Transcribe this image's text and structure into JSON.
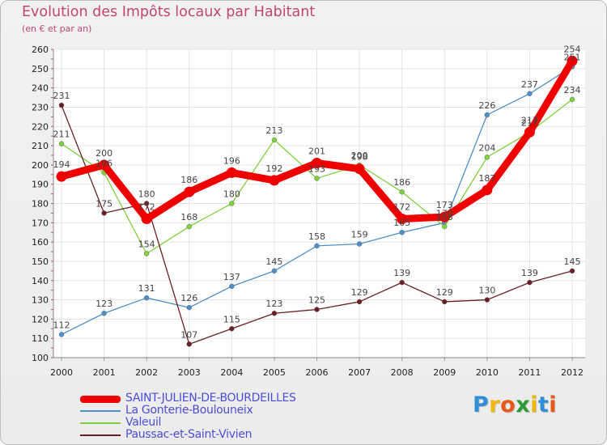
{
  "header": {
    "title": "Evolution des Impôts locaux par Habitant",
    "subtitle": "(en € et par an)"
  },
  "chart_data": {
    "type": "line",
    "title": "Evolution des Impôts locaux par Habitant",
    "subtitle": "(en € et par an)",
    "xlabel": "",
    "ylabel": "",
    "ylim": [
      100,
      260
    ],
    "y_ticks": [
      100,
      110,
      120,
      130,
      140,
      150,
      160,
      170,
      180,
      190,
      200,
      210,
      220,
      230,
      240,
      250,
      260
    ],
    "categories": [
      "2000",
      "2001",
      "2002",
      "2003",
      "2004",
      "2005",
      "2006",
      "2007",
      "2008",
      "2009",
      "2010",
      "2011",
      "2012"
    ],
    "grid": true,
    "legend_position": "bottom-left",
    "series": [
      {
        "name": "La Gonterie-Boulouneix",
        "color": "#4f8fc9",
        "values": [
          112,
          123,
          131,
          126,
          137,
          145,
          158,
          159,
          165,
          170,
          226,
          237,
          251
        ],
        "labels": [
          "112",
          "123",
          "131",
          "126",
          "137",
          "145",
          "158",
          "159",
          "165",
          "170",
          "226",
          "237",
          "251"
        ]
      },
      {
        "name": "Valeuil",
        "color": "#7ed13f",
        "values": [
          211,
          196,
          154,
          168,
          180,
          213,
          193,
          200,
          186,
          168,
          204,
          217,
          234
        ],
        "labels": [
          "211",
          "196",
          "154",
          "168",
          "180",
          "213",
          "193",
          "200",
          "186",
          "168",
          "204",
          "217",
          "234"
        ]
      },
      {
        "name": "Paussac-et-Saint-Vivien",
        "color": "#6b1f23",
        "values": [
          231,
          175,
          180,
          107,
          115,
          123,
          125,
          129,
          139,
          129,
          130,
          139,
          145
        ],
        "labels": [
          "231",
          "175",
          "180",
          "107",
          "115",
          "123",
          "125",
          "129",
          "139",
          "129",
          "130",
          "139",
          "145"
        ]
      },
      {
        "name": "SAINT-JULIEN-DE-BOURDEILLES",
        "color": "#ee0000",
        "values": [
          194,
          200,
          172,
          186,
          196,
          192,
          201,
          198,
          172,
          173,
          187,
          217,
          254
        ],
        "labels": [
          "194",
          "200",
          "172",
          "186",
          "196",
          "192",
          "201",
          "198",
          "172",
          "173",
          "187",
          "217",
          "254"
        ]
      }
    ]
  },
  "legend": {
    "items": [
      {
        "label": "SAINT-JULIEN-DE-BOURDEILLES",
        "color": "#ee0000",
        "style": "thick"
      },
      {
        "label": "La Gonterie-Boulouneix",
        "color": "#4f8fc9",
        "style": "thin"
      },
      {
        "label": "Valeuil",
        "color": "#7ed13f",
        "style": "thin"
      },
      {
        "label": "Paussac-et-Saint-Vivien",
        "color": "#6b1f23",
        "style": "thin"
      }
    ]
  },
  "brand": {
    "letters": [
      "P",
      "r",
      "o",
      "x",
      "i",
      "t",
      "i"
    ],
    "colors": [
      "#2f8fd6",
      "#f1b800",
      "#e8581b",
      "#2c9b34",
      "#f1b800",
      "#2f8fd6",
      "#e8581b"
    ]
  }
}
